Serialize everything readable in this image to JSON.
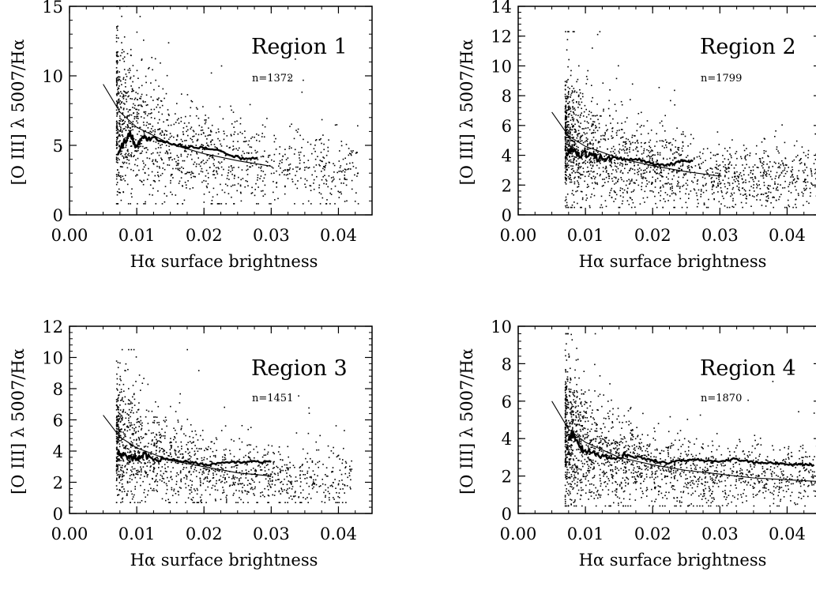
{
  "figure": {
    "x_axis_label": "Hα surface brightness",
    "y_axis_label": "[O III] λ 5007/Hα"
  },
  "chart_data": [
    {
      "type": "scatter",
      "title": "Region 1",
      "annotation": "n=1372",
      "xlabel": "Hα surface brightness",
      "ylabel": "[O III] λ 5007/Hα",
      "xlim": [
        0.0,
        0.045
      ],
      "ylim": [
        0,
        15
      ],
      "x_ticks": [
        "0.00",
        "0.01",
        "0.02",
        "0.03",
        "0.04"
      ],
      "x_tick_values": [
        0.0,
        0.01,
        0.02,
        0.03,
        0.04
      ],
      "y_ticks": [
        "0",
        "5",
        "10",
        "15"
      ],
      "y_tick_values": [
        0,
        5,
        10,
        15
      ],
      "n_points": 1372,
      "scatter_points": {
        "x_range": [
          0.007,
          0.043
        ],
        "y_range": [
          0.8,
          15
        ]
      },
      "fit_curve": {
        "x": [
          0.005,
          0.0075,
          0.01,
          0.015,
          0.02,
          0.025,
          0.03
        ],
        "y": [
          9.4,
          7.4,
          6.3,
          5.1,
          4.4,
          3.9,
          3.5
        ]
      },
      "running_median": {
        "x": [
          0.0072,
          0.008,
          0.009,
          0.01,
          0.011,
          0.012,
          0.014,
          0.016,
          0.018,
          0.02,
          0.022,
          0.024,
          0.026,
          0.028
        ],
        "y": [
          4.5,
          5.1,
          5.8,
          4.9,
          5.5,
          5.6,
          5.3,
          5.0,
          4.9,
          4.8,
          4.6,
          4.3,
          4.0,
          4.1
        ]
      }
    },
    {
      "type": "scatter",
      "title": "Region 2",
      "annotation": "n=1799",
      "xlabel": "Hα surface brightness",
      "ylabel": "[O III] λ 5007/Hα",
      "xlim": [
        0.0,
        0.045
      ],
      "ylim": [
        0,
        14
      ],
      "x_ticks": [
        "0.00",
        "0.01",
        "0.02",
        "0.03",
        "0.04"
      ],
      "x_tick_values": [
        0.0,
        0.01,
        0.02,
        0.03,
        0.04
      ],
      "y_ticks": [
        "0",
        "2",
        "4",
        "6",
        "8",
        "10",
        "12",
        "14"
      ],
      "y_tick_values": [
        0,
        2,
        4,
        6,
        8,
        10,
        12,
        14
      ],
      "n_points": 1799,
      "scatter_points": {
        "x_range": [
          0.007,
          0.046
        ],
        "y_range": [
          0.5,
          12.3
        ]
      },
      "fit_curve": {
        "x": [
          0.005,
          0.0075,
          0.01,
          0.015,
          0.02,
          0.025,
          0.03
        ],
        "y": [
          6.9,
          5.3,
          4.6,
          3.8,
          3.3,
          2.9,
          2.6
        ]
      },
      "running_median": {
        "x": [
          0.0072,
          0.008,
          0.009,
          0.01,
          0.011,
          0.012,
          0.014,
          0.016,
          0.018,
          0.02,
          0.022,
          0.024,
          0.026
        ],
        "y": [
          3.9,
          4.4,
          4.0,
          4.1,
          3.9,
          3.8,
          3.9,
          3.7,
          3.7,
          3.4,
          3.3,
          3.6,
          3.6
        ]
      }
    },
    {
      "type": "scatter",
      "title": "Region 3",
      "annotation": "n=1451",
      "xlabel": "Hα surface brightness",
      "ylabel": "[O III] λ 5007/Hα",
      "xlim": [
        0.0,
        0.045
      ],
      "ylim": [
        0,
        12
      ],
      "x_ticks": [
        "0.00",
        "0.01",
        "0.02",
        "0.03",
        "0.04"
      ],
      "x_tick_values": [
        0.0,
        0.01,
        0.02,
        0.03,
        0.04
      ],
      "y_ticks": [
        "0",
        "2",
        "4",
        "6",
        "8",
        "10",
        "12"
      ],
      "y_tick_values": [
        0,
        2,
        4,
        6,
        8,
        10,
        12
      ],
      "n_points": 1451,
      "scatter_points": {
        "x_range": [
          0.007,
          0.042
        ],
        "y_range": [
          0.7,
          10.5
        ]
      },
      "fit_curve": {
        "x": [
          0.005,
          0.0075,
          0.01,
          0.015,
          0.02,
          0.025,
          0.03
        ],
        "y": [
          6.3,
          4.9,
          4.2,
          3.4,
          3.0,
          2.6,
          2.4
        ]
      },
      "running_median": {
        "x": [
          0.0072,
          0.008,
          0.009,
          0.01,
          0.011,
          0.012,
          0.014,
          0.016,
          0.018,
          0.02,
          0.022,
          0.024,
          0.026,
          0.028,
          0.03
        ],
        "y": [
          3.9,
          3.7,
          3.6,
          3.5,
          3.8,
          3.6,
          3.5,
          3.4,
          3.3,
          3.1,
          3.2,
          3.3,
          3.3,
          3.3,
          3.3
        ]
      }
    },
    {
      "type": "scatter",
      "title": "Region 4",
      "annotation": "n=1870",
      "xlabel": "Hα surface brightness",
      "ylabel": "[O III] λ 5007/Hα",
      "xlim": [
        0.0,
        0.045
      ],
      "ylim": [
        0,
        10
      ],
      "x_ticks": [
        "0.00",
        "0.01",
        "0.02",
        "0.03",
        "0.04"
      ],
      "x_tick_values": [
        0.0,
        0.01,
        0.02,
        0.03,
        0.04
      ],
      "y_ticks": [
        "0",
        "2",
        "4",
        "6",
        "8",
        "10"
      ],
      "y_tick_values": [
        0,
        2,
        4,
        6,
        8,
        10
      ],
      "n_points": 1870,
      "scatter_points": {
        "x_range": [
          0.007,
          0.046
        ],
        "y_range": [
          0.4,
          9.6
        ]
      },
      "fit_curve": {
        "x": [
          0.005,
          0.0075,
          0.01,
          0.015,
          0.02,
          0.025,
          0.03,
          0.035,
          0.04,
          0.045
        ],
        "y": [
          6.0,
          4.5,
          3.8,
          3.0,
          2.6,
          2.3,
          2.1,
          1.9,
          1.8,
          1.7
        ]
      },
      "running_median": {
        "x": [
          0.0075,
          0.008,
          0.009,
          0.01,
          0.012,
          0.014,
          0.016,
          0.018,
          0.02,
          0.022,
          0.024,
          0.026,
          0.028,
          0.03,
          0.032,
          0.034,
          0.036,
          0.038,
          0.04,
          0.042,
          0.044
        ],
        "y": [
          3.8,
          4.3,
          3.6,
          3.3,
          3.1,
          3.0,
          3.1,
          3.0,
          2.8,
          2.7,
          2.8,
          2.9,
          2.8,
          2.8,
          2.9,
          2.8,
          2.7,
          2.7,
          2.6,
          2.6,
          2.6
        ]
      }
    }
  ]
}
